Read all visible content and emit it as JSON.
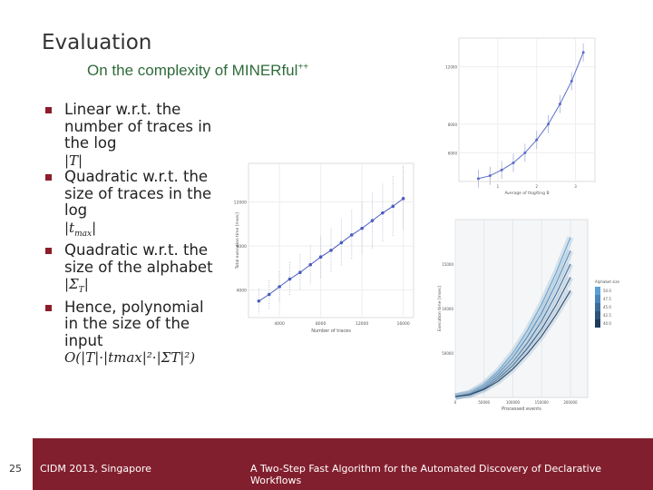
{
  "slide": {
    "title": "Evaluation",
    "subtitle_main": "On the complexity of MINERful",
    "subtitle_sup": "++",
    "bullets": [
      {
        "text": "Linear w.r.t. the number of traces in the log",
        "math": "|T|"
      },
      {
        "text": "Quadratic w.r.t. the size of traces in the log",
        "math_base": "|t",
        "math_sub": "max",
        "math_end": "|"
      },
      {
        "text": "Quadratic w.r.t. the size of the alphabet",
        "math_base": "|Σ",
        "math_sub": "T",
        "math_end": "|"
      },
      {
        "text": "Hence, polynomial in the size of the input",
        "math": "O(|T|·|tmax|²·|ΣT|²)"
      }
    ]
  },
  "footer": {
    "page_number": "25",
    "left": "CIDM 2013, Singapore",
    "right": "A Two-Step Fast Algorithm for the Automated Discovery of Declarative Workflows"
  },
  "colors": {
    "footer": "#821f2e",
    "bullet": "#8c1d2a",
    "subtitle": "#2f6b3a",
    "scatter": "#5a6ec8"
  },
  "chart_data": [
    {
      "type": "line",
      "xlabel": "Number of traces",
      "ylabel": "Total execution time [msec]",
      "x_ticks": [
        "4000",
        "8000",
        "12000",
        "16000"
      ],
      "y_ticks": [
        "4000",
        "8000",
        "12000"
      ],
      "x": [
        2000,
        3000,
        4000,
        5000,
        6000,
        7000,
        8000,
        9000,
        10000,
        11000,
        12000,
        13000,
        14000,
        15000,
        16000
      ],
      "y": [
        3000,
        3600,
        4300,
        5000,
        5600,
        6300,
        7000,
        7600,
        8300,
        9000,
        9600,
        10300,
        11000,
        11600,
        12300
      ],
      "xlim": [
        1000,
        17000
      ],
      "ylim": [
        1500,
        15500
      ]
    },
    {
      "type": "scatter",
      "xlabel": "Average of tlog/ting B",
      "y_ticks": [
        "6000",
        "8000",
        "12000"
      ],
      "x_ticks": [
        "1",
        "2",
        "3"
      ],
      "x": [
        0.5,
        0.8,
        1.1,
        1.4,
        1.7,
        2.0,
        2.3,
        2.6,
        2.9,
        3.2
      ],
      "y": [
        4200,
        4400,
        4800,
        5300,
        6000,
        6900,
        8000,
        9400,
        11000,
        13000
      ],
      "xlim": [
        0,
        3.5
      ],
      "ylim": [
        4000,
        14000
      ]
    },
    {
      "type": "line",
      "xlabel": "Processed events",
      "ylabel": "Execution time [msec]",
      "x_ticks": [
        "0",
        "50000",
        "100000",
        "150000",
        "200000"
      ],
      "y_ticks": [
        "50000",
        "10000",
        "15000"
      ],
      "legend_title": "Alphabet size",
      "legend": [
        "50.0",
        "47.5",
        "45.0",
        "42.5",
        "40.0"
      ],
      "x": [
        0,
        25000,
        50000,
        75000,
        100000,
        125000,
        150000,
        175000,
        200000
      ],
      "series": [
        {
          "values": [
            100,
            500,
            1500,
            3000,
            5000,
            7500,
            10500,
            14000,
            18000
          ]
        },
        {
          "values": [
            100,
            450,
            1300,
            2700,
            4500,
            6800,
            9500,
            12800,
            16500
          ]
        },
        {
          "values": [
            100,
            400,
            1150,
            2400,
            4000,
            6100,
            8600,
            11600,
            15000
          ]
        },
        {
          "values": [
            100,
            350,
            1000,
            2100,
            3600,
            5500,
            7700,
            10400,
            13500
          ]
        },
        {
          "values": [
            100,
            300,
            900,
            1850,
            3200,
            4900,
            6900,
            9300,
            12000
          ]
        }
      ],
      "xlim": [
        0,
        230000
      ],
      "ylim": [
        0,
        20000
      ]
    }
  ]
}
